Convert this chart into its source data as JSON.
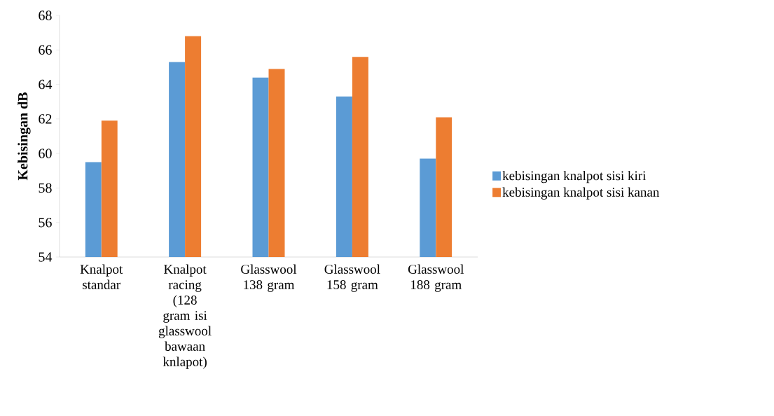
{
  "chart_data": {
    "type": "bar",
    "ylabel": "Kebisingan dB",
    "categories": [
      "Knalpot standar",
      "Knalpot racing (128 gram isi glasswool bawaan knlapot)",
      "Glasswool 138 gram",
      "Glasswool 158 gram",
      "Glasswool 188 gram"
    ],
    "series": [
      {
        "name": "kebisingan knalpot sisi kiri",
        "color": "#5b9bd5",
        "values": [
          59.5,
          65.3,
          64.4,
          63.3,
          59.7
        ]
      },
      {
        "name": "kebisingan knalpot sisi kanan",
        "color": "#ed7d31",
        "values": [
          61.9,
          66.8,
          64.9,
          65.6,
          62.1
        ]
      }
    ],
    "ylim": [
      54,
      68
    ],
    "yticks": [
      54,
      56,
      58,
      60,
      62,
      64,
      66,
      68
    ],
    "grid": false,
    "legend": "right"
  }
}
